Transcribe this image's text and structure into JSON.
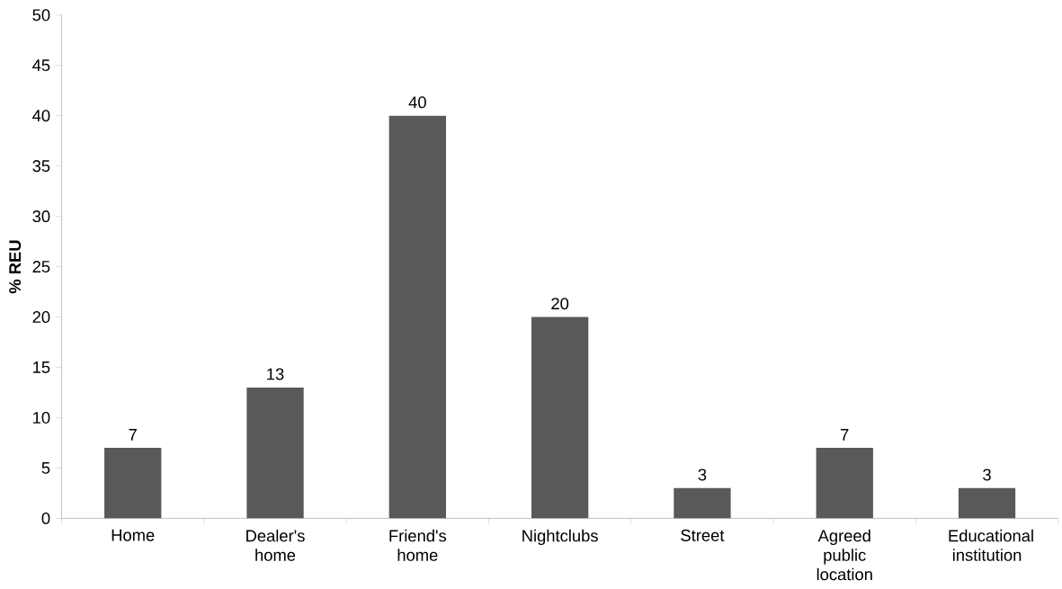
{
  "chart_data": {
    "type": "bar",
    "ylabel": "% REU",
    "categories": [
      "Home",
      "Dealer's home",
      "Friend's home",
      "Nightclubs",
      "Street",
      "Agreed public location",
      "Educational institution"
    ],
    "values": [
      7,
      13,
      40,
      20,
      3,
      7,
      3
    ],
    "color": "#595959",
    "ylim": [
      0,
      50
    ],
    "yticks": [
      0,
      5,
      10,
      15,
      20,
      25,
      30,
      35,
      40,
      45,
      50
    ],
    "grid": false,
    "data_labels": true
  }
}
